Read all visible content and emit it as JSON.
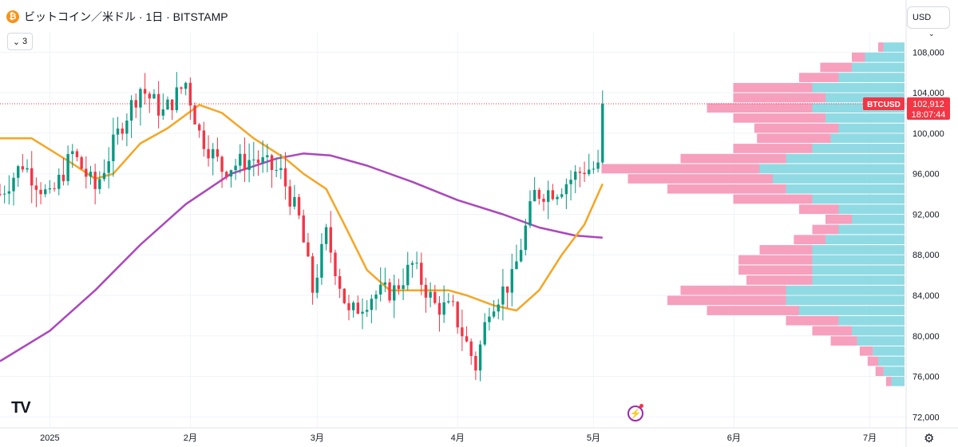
{
  "header": {
    "coin_icon_letter": "₿",
    "title": "ビットコイン／米ドル · 1日 · BITSTAMP",
    "collapse_count": "3",
    "currency_label": "USD"
  },
  "logo_text": "TV",
  "colors": {
    "up": "#089981",
    "down": "#f23645",
    "ma_short": "#f5a623",
    "ma_long": "#ab47bc",
    "volume_profile_up": "#7dd3de",
    "volume_profile_down": "#f48fb1",
    "grid": "#f0f3fa",
    "price_line": "#f23645"
  },
  "chart_data": {
    "type": "candlestick",
    "symbol": "BTCUSD",
    "exchange": "BITSTAMP",
    "interval": "1日",
    "last_price_label": "102,912",
    "countdown_label": "18:07:44",
    "ylim": [
      71000,
      110000
    ],
    "y_ticks": [
      72000,
      76000,
      80000,
      84000,
      88000,
      92000,
      96000,
      100000,
      104000,
      108000
    ],
    "y_tick_labels": [
      "72,000",
      "76,000",
      "80,000",
      "84,000",
      "88,000",
      "92,000",
      "96,000",
      "100,000",
      "104,000",
      "108,000"
    ],
    "x_ticks": [
      {
        "day": 0,
        "label": "2025"
      },
      {
        "day": 31,
        "label": "2月"
      },
      {
        "day": 59,
        "label": "3月"
      },
      {
        "day": 90,
        "label": "4月"
      },
      {
        "day": 120,
        "label": "5月"
      },
      {
        "day": 151,
        "label": "6月"
      },
      {
        "day": 181,
        "label": "7月"
      }
    ],
    "x_range_days": [
      -11,
      189
    ],
    "anchor_points": [
      {
        "day": -11,
        "price": 94000
      },
      {
        "day": -6,
        "price": 97000
      },
      {
        "day": 0,
        "price": 93500
      },
      {
        "day": 5,
        "price": 98000
      },
      {
        "day": 10,
        "price": 94500
      },
      {
        "day": 16,
        "price": 101000
      },
      {
        "day": 20,
        "price": 104500
      },
      {
        "day": 25,
        "price": 102000
      },
      {
        "day": 30,
        "price": 105000
      },
      {
        "day": 33,
        "price": 100000
      },
      {
        "day": 38,
        "price": 96500
      },
      {
        "day": 45,
        "price": 97500
      },
      {
        "day": 51,
        "price": 96000
      },
      {
        "day": 55,
        "price": 91500
      },
      {
        "day": 58,
        "price": 84500
      },
      {
        "day": 61,
        "price": 90000
      },
      {
        "day": 66,
        "price": 82000
      },
      {
        "day": 71,
        "price": 84000
      },
      {
        "day": 76,
        "price": 84500
      },
      {
        "day": 80,
        "price": 87000
      },
      {
        "day": 85,
        "price": 83000
      },
      {
        "day": 89,
        "price": 82500
      },
      {
        "day": 94,
        "price": 77000
      },
      {
        "day": 97,
        "price": 83000
      },
      {
        "day": 102,
        "price": 85500
      },
      {
        "day": 107,
        "price": 94000
      },
      {
        "day": 112,
        "price": 94500
      },
      {
        "day": 118,
        "price": 96500
      },
      {
        "day": 121,
        "price": 96500
      },
      {
        "day": 122,
        "price": 102900
      }
    ],
    "ma_short": {
      "label": "",
      "points": [
        {
          "day": -11,
          "price": 99500
        },
        {
          "day": -4,
          "price": 99500
        },
        {
          "day": 5,
          "price": 97000
        },
        {
          "day": 10,
          "price": 95500
        },
        {
          "day": 14,
          "price": 96000
        },
        {
          "day": 20,
          "price": 99000
        },
        {
          "day": 26,
          "price": 100500
        },
        {
          "day": 33,
          "price": 102800
        },
        {
          "day": 38,
          "price": 102000
        },
        {
          "day": 45,
          "price": 99500
        },
        {
          "day": 52,
          "price": 97500
        },
        {
          "day": 56,
          "price": 96000
        },
        {
          "day": 61,
          "price": 94500
        },
        {
          "day": 65,
          "price": 91000
        },
        {
          "day": 70,
          "price": 86500
        },
        {
          "day": 75,
          "price": 84500
        },
        {
          "day": 80,
          "price": 84500
        },
        {
          "day": 88,
          "price": 84500
        },
        {
          "day": 92,
          "price": 84000
        },
        {
          "day": 98,
          "price": 83000
        },
        {
          "day": 103,
          "price": 82500
        },
        {
          "day": 108,
          "price": 84500
        },
        {
          "day": 113,
          "price": 88000
        },
        {
          "day": 118,
          "price": 91000
        },
        {
          "day": 122,
          "price": 95000
        }
      ]
    },
    "ma_long": {
      "label": "",
      "points": [
        {
          "day": -11,
          "price": 77500
        },
        {
          "day": 0,
          "price": 80500
        },
        {
          "day": 10,
          "price": 84500
        },
        {
          "day": 20,
          "price": 89000
        },
        {
          "day": 30,
          "price": 93000
        },
        {
          "day": 40,
          "price": 96000
        },
        {
          "day": 50,
          "price": 97500
        },
        {
          "day": 56,
          "price": 98000
        },
        {
          "day": 62,
          "price": 97800
        },
        {
          "day": 70,
          "price": 96800
        },
        {
          "day": 80,
          "price": 95200
        },
        {
          "day": 90,
          "price": 93400
        },
        {
          "day": 100,
          "price": 92000
        },
        {
          "day": 108,
          "price": 90700
        },
        {
          "day": 116,
          "price": 89900
        },
        {
          "day": 122,
          "price": 89700
        }
      ]
    },
    "volume_profile": {
      "note": "horizontal volume-at-price histogram, values relative 0-1",
      "rows": [
        {
          "price": 108500,
          "up": 0.08,
          "down": 0.02
        },
        {
          "price": 107500,
          "up": 0.15,
          "down": 0.05
        },
        {
          "price": 106500,
          "up": 0.2,
          "down": 0.12
        },
        {
          "price": 105500,
          "up": 0.25,
          "down": 0.15
        },
        {
          "price": 104500,
          "up": 0.35,
          "down": 0.3
        },
        {
          "price": 103500,
          "up": 0.3,
          "down": 0.35
        },
        {
          "price": 102500,
          "up": 0.35,
          "down": 0.4
        },
        {
          "price": 101500,
          "up": 0.3,
          "down": 0.35
        },
        {
          "price": 100500,
          "up": 0.25,
          "down": 0.32
        },
        {
          "price": 99500,
          "up": 0.28,
          "down": 0.28
        },
        {
          "price": 98500,
          "up": 0.35,
          "down": 0.3
        },
        {
          "price": 97500,
          "up": 0.45,
          "down": 0.4
        },
        {
          "price": 96500,
          "up": 0.55,
          "down": 0.6
        },
        {
          "price": 95500,
          "up": 0.5,
          "down": 0.55
        },
        {
          "price": 94500,
          "up": 0.45,
          "down": 0.45
        },
        {
          "price": 93500,
          "up": 0.35,
          "down": 0.3
        },
        {
          "price": 92500,
          "up": 0.25,
          "down": 0.15
        },
        {
          "price": 91500,
          "up": 0.2,
          "down": 0.1
        },
        {
          "price": 90500,
          "up": 0.25,
          "down": 0.1
        },
        {
          "price": 89500,
          "up": 0.3,
          "down": 0.12
        },
        {
          "price": 88500,
          "up": 0.35,
          "down": 0.2
        },
        {
          "price": 87500,
          "up": 0.35,
          "down": 0.28
        },
        {
          "price": 86500,
          "up": 0.35,
          "down": 0.28
        },
        {
          "price": 85500,
          "up": 0.35,
          "down": 0.25
        },
        {
          "price": 84500,
          "up": 0.45,
          "down": 0.4
        },
        {
          "price": 83500,
          "up": 0.45,
          "down": 0.45
        },
        {
          "price": 82500,
          "up": 0.4,
          "down": 0.35
        },
        {
          "price": 81500,
          "up": 0.25,
          "down": 0.2
        },
        {
          "price": 80500,
          "up": 0.2,
          "down": 0.15
        },
        {
          "price": 79500,
          "up": 0.18,
          "down": 0.1
        },
        {
          "price": 78500,
          "up": 0.12,
          "down": 0.05
        },
        {
          "price": 77500,
          "up": 0.1,
          "down": 0.04
        },
        {
          "price": 76500,
          "up": 0.08,
          "down": 0.03
        },
        {
          "price": 75500,
          "up": 0.05,
          "down": 0.02
        }
      ]
    },
    "grid": true
  }
}
